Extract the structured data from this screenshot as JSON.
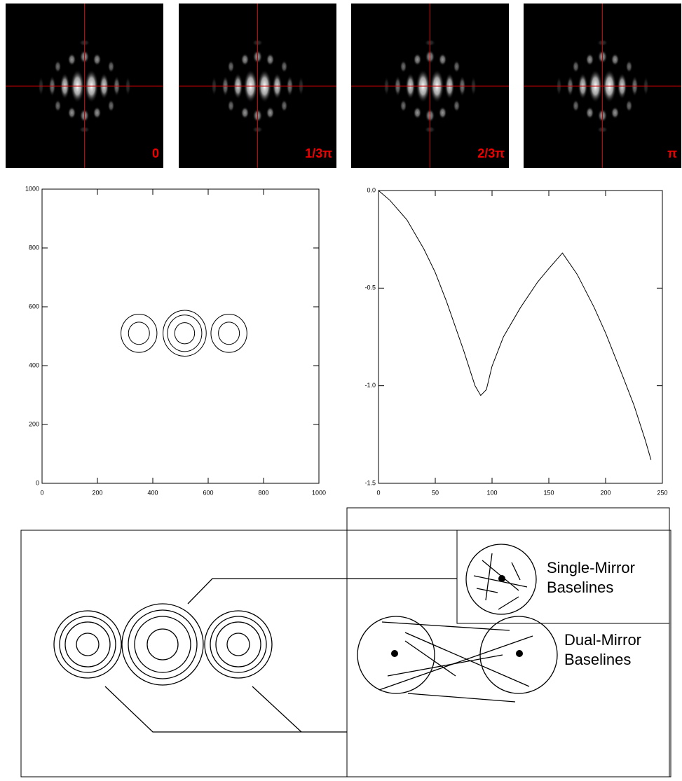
{
  "images": [
    {
      "label": "0"
    },
    {
      "label": "1/3π"
    },
    {
      "label": "2/3π"
    },
    {
      "label": "π"
    }
  ],
  "chart_data": [
    {
      "type": "contour",
      "circles": [
        {
          "x": 350,
          "y": 510,
          "r": 65
        },
        {
          "x": 350,
          "y": 510,
          "r": 38
        },
        {
          "x": 515,
          "y": 510,
          "r": 78
        },
        {
          "x": 515,
          "y": 510,
          "r": 62
        },
        {
          "x": 515,
          "y": 510,
          "r": 36
        },
        {
          "x": 675,
          "y": 510,
          "r": 65
        },
        {
          "x": 675,
          "y": 510,
          "r": 38
        }
      ],
      "xlim": [
        0,
        1000
      ],
      "ylim": [
        0,
        1000
      ],
      "xticks": [
        0,
        200,
        400,
        600,
        800,
        1000
      ],
      "yticks": [
        0,
        200,
        400,
        600,
        800,
        1000
      ]
    },
    {
      "type": "line",
      "x": [
        0,
        10,
        25,
        40,
        50,
        60,
        75,
        85,
        90,
        95,
        100,
        110,
        125,
        140,
        150,
        162,
        175,
        190,
        200,
        215,
        225,
        235,
        240
      ],
      "values": [
        0,
        -0.05,
        -0.15,
        -0.3,
        -0.42,
        -0.57,
        -0.82,
        -1.0,
        -1.05,
        -1.02,
        -0.9,
        -0.75,
        -0.6,
        -0.47,
        -0.4,
        -0.32,
        -0.43,
        -0.6,
        -0.73,
        -0.95,
        -1.1,
        -1.28,
        -1.38
      ],
      "xlim": [
        0,
        250
      ],
      "ylim": [
        -1.5,
        0
      ],
      "xticks": [
        0,
        50,
        100,
        150,
        200,
        250
      ],
      "yticks": [
        {
          "value": 0,
          "label": "0.0"
        },
        -0.5,
        {
          "value": -1,
          "label": "-1.0"
        },
        -1.5
      ]
    }
  ],
  "diagram": {
    "single_mirror": [
      "Single-Mirror",
      "Baselines"
    ],
    "dual_mirror": [
      "Dual-Mirror",
      "Baselines"
    ]
  }
}
